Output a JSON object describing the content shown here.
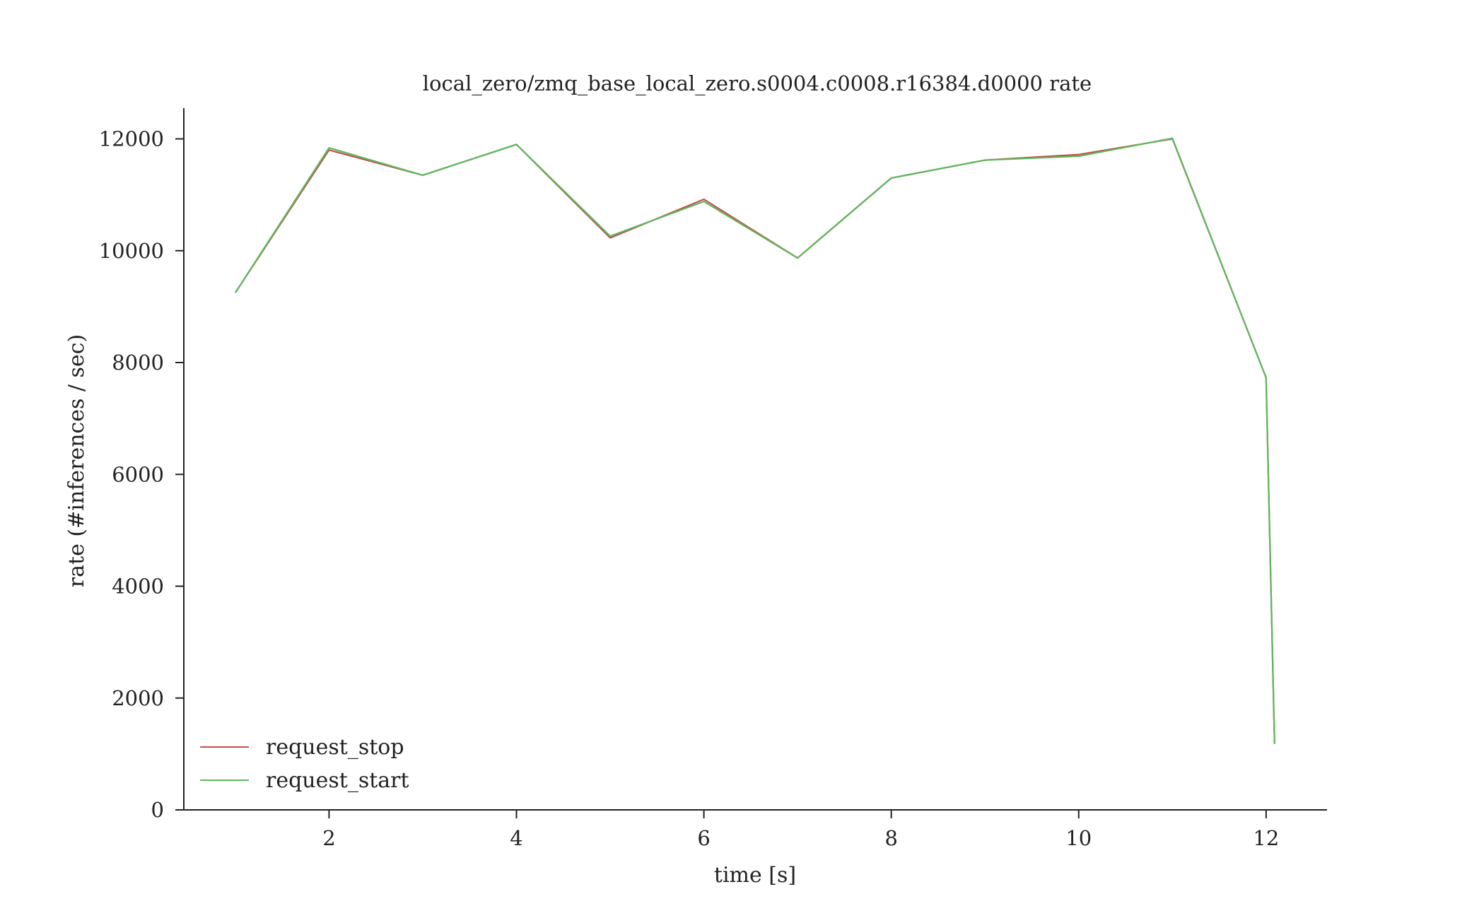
{
  "chart_data": {
    "type": "line",
    "title": "local_zero/zmq_base_local_zero.s0004.c0008.r16384.d0000 rate",
    "xlabel": "time [s]",
    "ylabel": "rate (#inferences / sec)",
    "xlim": [
      0.45,
      12.65
    ],
    "ylim": [
      0,
      12550
    ],
    "xticks": [
      2,
      4,
      6,
      8,
      10,
      12
    ],
    "xtick_labels": [
      "2",
      "4",
      "6",
      "8",
      "10",
      "12"
    ],
    "yticks": [
      0,
      2000,
      4000,
      6000,
      8000,
      10000,
      12000
    ],
    "ytick_labels": [
      "0",
      "2000",
      "4000",
      "6000",
      "8000",
      "10000",
      "12000"
    ],
    "grid": false,
    "legend_position": "lower-left",
    "series": [
      {
        "name": "request_stop",
        "color": "#c0504d",
        "x": [
          1,
          2,
          3,
          4,
          5,
          6,
          7,
          8,
          9,
          10,
          11,
          12,
          12.09
        ],
        "y": [
          9250,
          11800,
          11350,
          11900,
          10230,
          10920,
          9870,
          11300,
          11620,
          11720,
          12000,
          7730,
          1180
        ]
      },
      {
        "name": "request_start",
        "color": "#5cb85c",
        "x": [
          1,
          2,
          3,
          4,
          5,
          6,
          7,
          8,
          9,
          10,
          11,
          12,
          12.09
        ],
        "y": [
          9250,
          11840,
          11350,
          11900,
          10260,
          10880,
          9870,
          11300,
          11620,
          11690,
          12010,
          7730,
          1180
        ]
      }
    ]
  }
}
